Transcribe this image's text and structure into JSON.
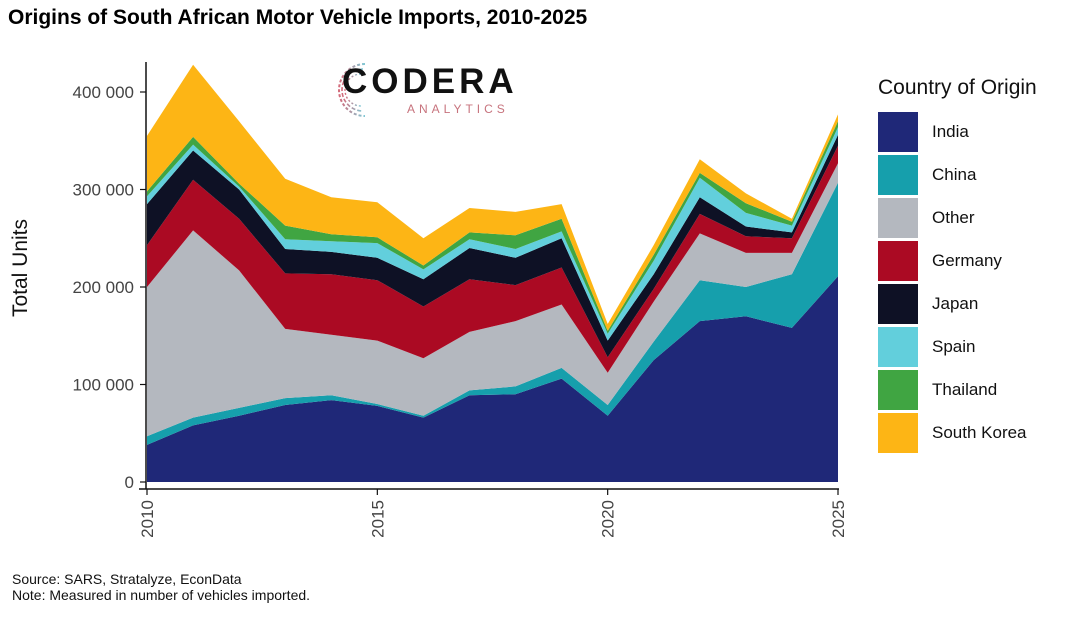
{
  "chart_data": {
    "type": "area",
    "stacked": true,
    "title": "Origins of South African Motor Vehicle Imports, 2010-2025",
    "xlabel": "",
    "ylabel": "Total Units",
    "x": [
      2010,
      2011,
      2012,
      2013,
      2014,
      2015,
      2016,
      2017,
      2018,
      2019,
      2020,
      2021,
      2022,
      2023,
      2024,
      2025
    ],
    "xlim": [
      2010,
      2025
    ],
    "ylim": [
      0,
      440000
    ],
    "x_ticks": [
      "2010",
      "2015",
      "2020",
      "2025"
    ],
    "x_tick_values": [
      2010,
      2015,
      2020,
      2025
    ],
    "y_ticks": [
      "0",
      "100 000",
      "200 000",
      "300 000",
      "400 000"
    ],
    "y_tick_values": [
      0,
      100000,
      200000,
      300000,
      400000
    ],
    "grid": false,
    "legend_title": "Country of Origin",
    "legend_position": "right",
    "series": [
      {
        "name": "India",
        "color": "#1f2878",
        "values": [
          38000,
          58000,
          68000,
          79000,
          84000,
          78000,
          66000,
          89000,
          90000,
          106000,
          68000,
          125000,
          165000,
          170000,
          158000,
          211000
        ]
      },
      {
        "name": "China",
        "color": "#169fac",
        "values": [
          9000,
          8000,
          8000,
          7000,
          5000,
          2000,
          2000,
          5000,
          8000,
          11000,
          11000,
          19000,
          42000,
          30000,
          55000,
          96000
        ]
      },
      {
        "name": "Other",
        "color": "#b4b8bf",
        "values": [
          153000,
          192000,
          141000,
          71000,
          62000,
          65000,
          59000,
          60000,
          67000,
          65000,
          33000,
          41000,
          48000,
          35000,
          22000,
          20000
        ]
      },
      {
        "name": "Germany",
        "color": "#ab0a23",
        "values": [
          43000,
          52000,
          53000,
          57000,
          62000,
          62000,
          53000,
          54000,
          37000,
          38000,
          16000,
          13000,
          20000,
          17000,
          15000,
          18000
        ]
      },
      {
        "name": "Japan",
        "color": "#0e1125",
        "values": [
          42000,
          30000,
          30000,
          25000,
          23000,
          23000,
          28000,
          32000,
          28000,
          30000,
          17000,
          15000,
          17000,
          10000,
          6000,
          11000
        ]
      },
      {
        "name": "Spain",
        "color": "#62cfdc",
        "values": [
          8000,
          6000,
          3000,
          10000,
          11000,
          15000,
          10000,
          9000,
          9000,
          7000,
          7000,
          14000,
          20000,
          14000,
          7000,
          8000
        ]
      },
      {
        "name": "Thailand",
        "color": "#40a542",
        "values": [
          5000,
          8000,
          3000,
          14000,
          7000,
          6000,
          4000,
          7000,
          14000,
          13000,
          3000,
          6000,
          5000,
          10000,
          4000,
          6000
        ]
      },
      {
        "name": "South Korea",
        "color": "#fdb515",
        "values": [
          57000,
          74000,
          64000,
          48000,
          38000,
          36000,
          28000,
          25000,
          24000,
          15000,
          7000,
          10000,
          14000,
          10000,
          3000,
          7000
        ]
      }
    ]
  },
  "logo": {
    "main": "CODERA",
    "sub": "ANALYTICS"
  },
  "footer": {
    "source": "Source: SARS, Stratalyze, EconData",
    "note": "Note: Measured in number of vehicles imported."
  }
}
